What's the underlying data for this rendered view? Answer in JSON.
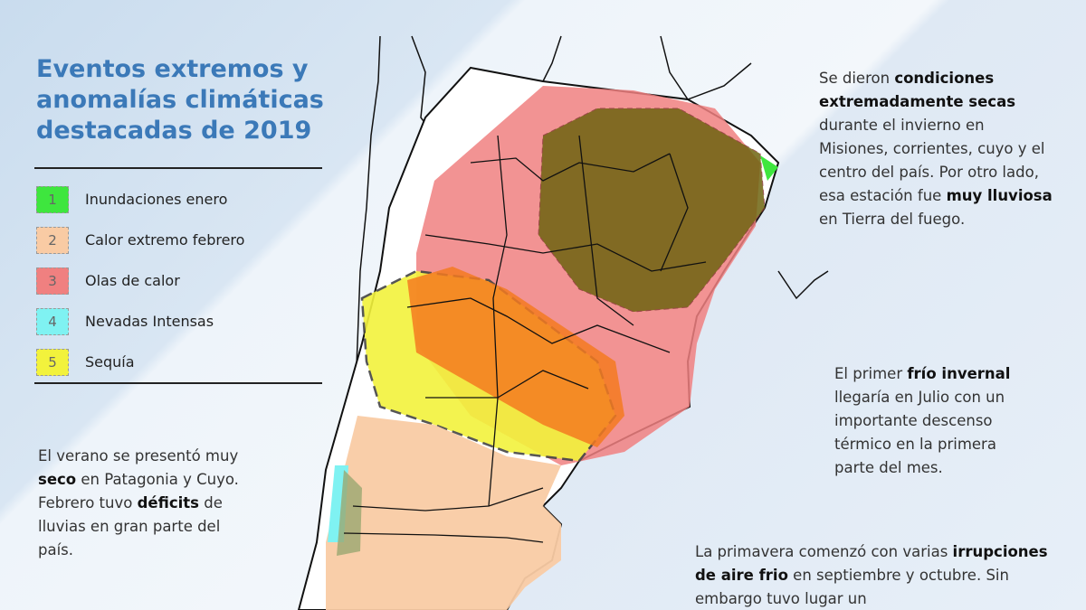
{
  "title": "Eventos extremos y anomalías climáticas destacadas de 2019",
  "legend": [
    {
      "number": 1,
      "label": "Inundaciones enero",
      "color": "#3ee63e"
    },
    {
      "number": 2,
      "label": "Calor extremo febrero",
      "color": "#f9cba4"
    },
    {
      "number": 3,
      "label": "Olas de calor",
      "color": "#f08080"
    },
    {
      "number": 4,
      "label": "Nevadas Intensas",
      "color": "#7ff2f2"
    },
    {
      "number": 5,
      "label": "Sequía",
      "color": "#f2f23c"
    }
  ],
  "notes": [
    {
      "segments": [
        {
          "text": "Se dieron ",
          "bold": false
        },
        {
          "text": "condiciones extremadamente secas",
          "bold": true
        },
        {
          "text": " durante el invierno en Misiones, corrientes, cuyo y el centro del país.  Por otro lado, esa estación fue ",
          "bold": false
        },
        {
          "text": "muy lluviosa",
          "bold": true
        },
        {
          "text": " en Tierra del fuego.",
          "bold": false
        }
      ]
    },
    {
      "segments": [
        {
          "text": "El primer ",
          "bold": false
        },
        {
          "text": "frío invernal",
          "bold": true
        },
        {
          "text": " llegaría en Julio con un importante descenso térmico en la primera parte del mes.",
          "bold": false
        }
      ]
    },
    {
      "segments": [
        {
          "text": "El verano se presentó muy ",
          "bold": false
        },
        {
          "text": "seco",
          "bold": true
        },
        {
          "text": " en Patagonia y Cuyo. Febrero tuvo ",
          "bold": false
        },
        {
          "text": "déficits",
          "bold": true
        },
        {
          "text": " de lluvias en gran parte del país.",
          "bold": false
        }
      ]
    },
    {
      "segments": [
        {
          "text": "La primavera comenzó con varias ",
          "bold": false
        },
        {
          "text": "irrupciones de aire frio",
          "bold": true
        },
        {
          "text": " en septiembre y octubre. Sin embargo tuvo lugar un",
          "bold": false
        }
      ]
    }
  ]
}
